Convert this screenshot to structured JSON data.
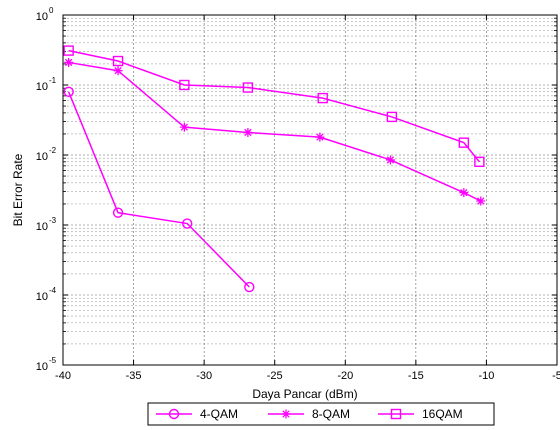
{
  "chart_data": {
    "type": "line",
    "title": "",
    "xlabel": "Daya Pancar (dBm)",
    "ylabel": "Bit Error Rate",
    "xlim": [
      -40,
      -5
    ],
    "ylim": [
      1e-05,
      1
    ],
    "yscale": "log",
    "grid": true,
    "legend_position": "bottom-center",
    "x_ticks": [
      {
        "value": -40,
        "label": "-40"
      },
      {
        "value": -35,
        "label": "-35"
      },
      {
        "value": -30,
        "label": "-30"
      },
      {
        "value": -25,
        "label": "-25"
      },
      {
        "value": -20,
        "label": "-20"
      },
      {
        "value": -15,
        "label": "-15"
      },
      {
        "value": -10,
        "label": "-10"
      },
      {
        "value": -5,
        "label": "-5"
      }
    ],
    "y_ticks": [
      {
        "value": 1,
        "base": "10",
        "exp": "0"
      },
      {
        "value": 0.1,
        "base": "10",
        "exp": "-1"
      },
      {
        "value": 0.01,
        "base": "10",
        "exp": "-2"
      },
      {
        "value": 0.001,
        "base": "10",
        "exp": "-3"
      },
      {
        "value": 0.0001,
        "base": "10",
        "exp": "-4"
      },
      {
        "value": 1e-05,
        "base": "10",
        "exp": "-5"
      }
    ],
    "series": [
      {
        "name": "4-QAM",
        "marker": "circle",
        "color": "#ff00ff",
        "x": [
          -39.6,
          -36.1,
          -31.2,
          -26.8
        ],
        "y": [
          0.08,
          0.0015,
          0.00105,
          0.00013
        ]
      },
      {
        "name": "8-QAM",
        "marker": "star",
        "color": "#ff00ff",
        "x": [
          -39.6,
          -36.1,
          -31.4,
          -26.9,
          -21.8,
          -16.8,
          -11.6,
          -10.4
        ],
        "y": [
          0.21,
          0.16,
          0.025,
          0.021,
          0.018,
          0.0085,
          0.0029,
          0.0022
        ]
      },
      {
        "name": "16QAM",
        "marker": "square",
        "color": "#ff00ff",
        "x": [
          -39.6,
          -36.1,
          -31.4,
          -26.9,
          -21.6,
          -16.7,
          -11.6,
          -10.5
        ],
        "y": [
          0.31,
          0.22,
          0.1,
          0.092,
          0.065,
          0.035,
          0.015,
          0.008
        ]
      }
    ]
  }
}
